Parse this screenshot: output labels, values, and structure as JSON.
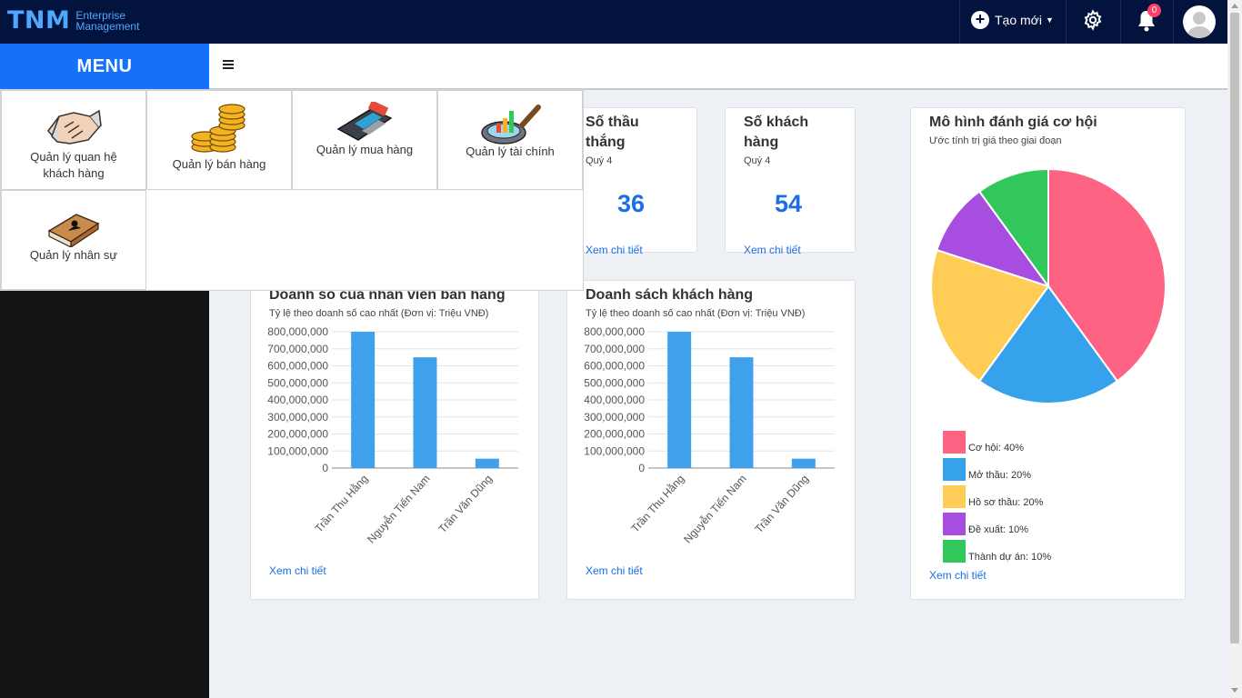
{
  "brand": {
    "name": "TNM",
    "line1": "Enterprise",
    "line2": "Management"
  },
  "topbar": {
    "create_label": "Tạo mới",
    "notification_count": "0"
  },
  "sidebar": {
    "menu_label": "MENU"
  },
  "modules": [
    {
      "label": "Quản lý quan hệ khách hàng",
      "icon": "handshake-icon"
    },
    {
      "label": "Quản lý bán hàng",
      "icon": "coins-icon"
    },
    {
      "label": "Quản lý mua hàng",
      "icon": "card-terminal-icon"
    },
    {
      "label": "Quản lý tài chính",
      "icon": "finance-magnifier-icon"
    },
    {
      "label": "Quản lý nhân sự",
      "icon": "book-person-icon"
    }
  ],
  "stats": [
    {
      "title_line1": "Số thầu",
      "title_line2": "thắng",
      "period": "Quý 4",
      "value": "36",
      "link": "Xem chi tiết"
    },
    {
      "title_line1": "Số khách",
      "title_line2": "hàng",
      "period": "Quý 4",
      "value": "54",
      "link": "Xem chi tiết"
    }
  ],
  "bar_cards": [
    {
      "title": "Doanh số của nhân viên bán hàng",
      "subtitle": "Tỷ lệ theo doanh số cao nhất (Đơn vị: Triệu VNĐ)",
      "link": "Xem chi tiết"
    },
    {
      "title": "Doanh sách khách hàng",
      "subtitle": "Tỷ lệ theo doanh số cao nhất (Đơn vị: Triệu VNĐ)",
      "link": "Xem chi tiết"
    }
  ],
  "pie_card": {
    "title": "Mô hình đánh giá cơ hội",
    "subtitle": "Ước tính trị giá theo giai đoạn",
    "link": "Xem chi tiết"
  },
  "chart_data": [
    {
      "type": "bar",
      "title": "Doanh số của nhân viên bán hàng",
      "categories": [
        "Trần Thu Hằng",
        "Nguyễn Tiến Nam",
        "Trần Văn Dũng"
      ],
      "values": [
        800000000,
        650000000,
        55000000
      ],
      "yticks": [
        "0",
        "100,000,000",
        "200,000,000",
        "300,000,000",
        "400,000,000",
        "500,000,000",
        "600,000,000",
        "700,000,000",
        "800,000,000"
      ],
      "ylim": [
        0,
        800000000
      ],
      "color": "#3fa0ec"
    },
    {
      "type": "bar",
      "title": "Doanh sách khách hàng",
      "categories": [
        "Trần Thu Hằng",
        "Nguyễn Tiến Nam",
        "Trần Văn Dũng"
      ],
      "values": [
        800000000,
        650000000,
        55000000
      ],
      "yticks": [
        "0",
        "100,000,000",
        "200,000,000",
        "300,000,000",
        "400,000,000",
        "500,000,000",
        "600,000,000",
        "700,000,000",
        "800,000,000"
      ],
      "ylim": [
        0,
        800000000
      ],
      "color": "#3fa0ec"
    },
    {
      "type": "pie",
      "title": "Mô hình đánh giá cơ hội",
      "slices": [
        {
          "label": "Cơ hội: 40%",
          "value": 40,
          "color": "#ff6384"
        },
        {
          "label": "Mở thầu: 20%",
          "value": 20,
          "color": "#36a2eb"
        },
        {
          "label": "Hồ sơ thầu: 20%",
          "value": 20,
          "color": "#ffcd56"
        },
        {
          "label": "Đề xuất: 10%",
          "value": 10,
          "color": "#a74ddf"
        },
        {
          "label": "Thành dự án: 10%",
          "value": 10,
          "color": "#31c75a"
        }
      ]
    }
  ]
}
